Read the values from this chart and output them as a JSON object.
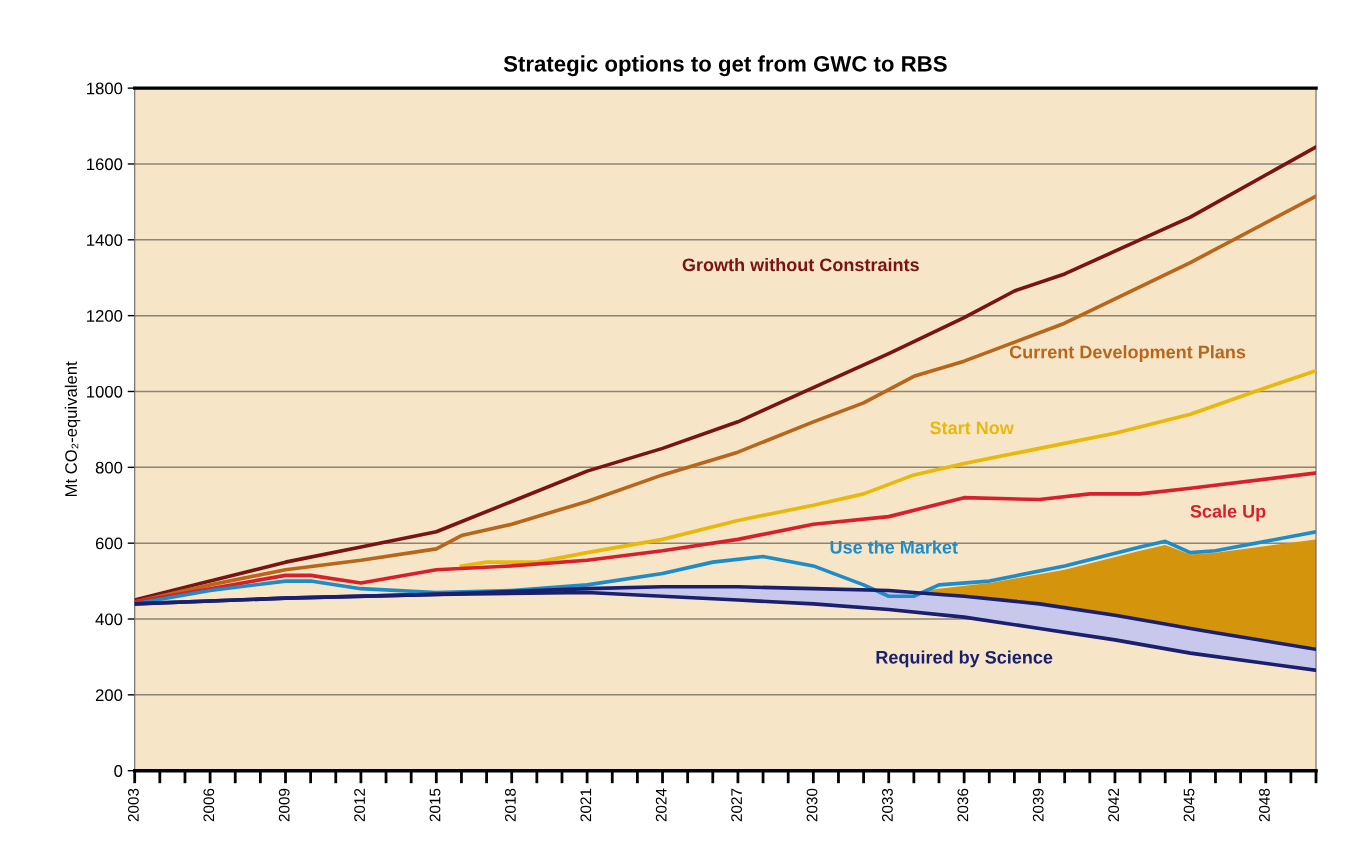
{
  "chart_data": {
    "type": "line",
    "title": "Strategic options to get from GWC to RBS",
    "ylabel": "Mt CO₂-equivalent",
    "xlim": [
      2003,
      2050
    ],
    "ylim": [
      0,
      1800
    ],
    "yticks": [
      0,
      200,
      400,
      600,
      800,
      1000,
      1200,
      1400,
      1600,
      1800
    ],
    "xticks": [
      2003,
      {
        "value": 2004,
        "label": null
      },
      {
        "value": 2005,
        "label": null
      },
      2006,
      {
        "value": 2007,
        "label": null
      },
      {
        "value": 2008,
        "label": null
      },
      2009,
      {
        "value": 2010,
        "label": null
      },
      {
        "value": 2011,
        "label": null
      },
      2012,
      {
        "value": 2013,
        "label": null
      },
      {
        "value": 2014,
        "label": null
      },
      2015,
      {
        "value": 2016,
        "label": null
      },
      {
        "value": 2017,
        "label": null
      },
      2018,
      {
        "value": 2019,
        "label": null
      },
      {
        "value": 2020,
        "label": null
      },
      2021,
      {
        "value": 2022,
        "label": null
      },
      {
        "value": 2023,
        "label": null
      },
      2024,
      {
        "value": 2025,
        "label": null
      },
      {
        "value": 2026,
        "label": null
      },
      2027,
      {
        "value": 2028,
        "label": null
      },
      {
        "value": 2029,
        "label": null
      },
      2030,
      {
        "value": 2031,
        "label": null
      },
      {
        "value": 2032,
        "label": null
      },
      2033,
      {
        "value": 2034,
        "label": null
      },
      {
        "value": 2035,
        "label": null
      },
      2036,
      {
        "value": 2037,
        "label": null
      },
      {
        "value": 2038,
        "label": null
      },
      2039,
      {
        "value": 2040,
        "label": null
      },
      {
        "value": 2041,
        "label": null
      },
      2042,
      {
        "value": 2043,
        "label": null
      },
      {
        "value": 2044,
        "label": null
      },
      2045,
      {
        "value": 2046,
        "label": null
      },
      {
        "value": 2047,
        "label": null
      },
      2048,
      {
        "value": 2049,
        "label": null
      },
      {
        "value": 2050,
        "label": null
      }
    ],
    "grid": "y",
    "legend": false,
    "series": [
      {
        "name": "Growth without Constraints",
        "color": "#7a1414",
        "x": [
          2003,
          2006,
          2009,
          2012,
          2015,
          2018,
          2021,
          2024,
          2027,
          2028,
          2030,
          2033,
          2036,
          2038,
          2040,
          2042,
          2045,
          2050
        ],
        "values": [
          450,
          500,
          550,
          590,
          630,
          710,
          790,
          850,
          920,
          950,
          1010,
          1100,
          1195,
          1265,
          1310,
          1370,
          1460,
          1645
        ]
      },
      {
        "name": "Current Development Plans",
        "color": "#b8661c",
        "x": [
          2003,
          2006,
          2009,
          2012,
          2015,
          2016,
          2018,
          2021,
          2024,
          2027,
          2030,
          2032,
          2034,
          2036,
          2040,
          2045,
          2050
        ],
        "values": [
          445,
          490,
          530,
          555,
          585,
          620,
          650,
          710,
          780,
          840,
          920,
          970,
          1040,
          1080,
          1180,
          1340,
          1515
        ]
      },
      {
        "name": "Start Now",
        "color": "#e8b90c",
        "x": [
          2016,
          2017,
          2019,
          2021,
          2024,
          2027,
          2030,
          2032,
          2034,
          2036,
          2039,
          2042,
          2045,
          2048,
          2050
        ],
        "values": [
          540,
          550,
          550,
          575,
          610,
          660,
          700,
          730,
          780,
          810,
          850,
          890,
          940,
          1010,
          1055
        ]
      },
      {
        "name": "Scale Up",
        "color": "#d8202c",
        "x": [
          2003,
          2006,
          2009,
          2010,
          2012,
          2015,
          2018,
          2021,
          2024,
          2027,
          2030,
          2033,
          2036,
          2039,
          2041,
          2043,
          2045,
          2050
        ],
        "values": [
          445,
          480,
          515,
          515,
          495,
          530,
          540,
          555,
          580,
          610,
          650,
          670,
          720,
          715,
          730,
          730,
          745,
          785
        ]
      },
      {
        "name": "Use the Market",
        "color": "#1e8cc8",
        "x": [
          2003,
          2006,
          2009,
          2010,
          2012,
          2015,
          2018,
          2021,
          2024,
          2026,
          2028,
          2030,
          2032,
          2033,
          2034,
          2035,
          2037,
          2040,
          2043,
          2044,
          2045,
          2046,
          2050
        ],
        "values": [
          440,
          475,
          500,
          500,
          480,
          470,
          475,
          490,
          520,
          550,
          565,
          540,
          490,
          460,
          460,
          490,
          500,
          540,
          590,
          605,
          575,
          580,
          630
        ],
        "lower": [
          null,
          null,
          null,
          null,
          null,
          null,
          null,
          null,
          null,
          null,
          null,
          null,
          null,
          null,
          470,
          465,
          452,
          430,
          398,
          387,
          375,
          364,
          320
        ],
        "upper": [
          null,
          null,
          null,
          null,
          null,
          null,
          null,
          null,
          null,
          null,
          null,
          null,
          null,
          null,
          470,
          480,
          495,
          530,
          580,
          595,
          570,
          575,
          610
        ]
      },
      {
        "name": "Required by Science",
        "color": "#1a1f6e",
        "x": [
          2003,
          2009,
          2015,
          2021,
          2024,
          2027,
          2030,
          2033,
          2036,
          2039,
          2042,
          2045,
          2050
        ],
        "values": [
          440,
          455,
          465,
          470,
          460,
          450,
          440,
          425,
          405,
          375,
          345,
          310,
          265
        ],
        "lower": [
          440,
          455,
          465,
          470,
          460,
          450,
          440,
          425,
          405,
          375,
          345,
          310,
          265
        ],
        "upper": [
          440,
          455,
          465,
          480,
          485,
          485,
          480,
          475,
          460,
          440,
          410,
          375,
          320
        ]
      },
      {
        "color": "#1a1f6e",
        "x": [
          2003,
          2009,
          2015,
          2021,
          2024,
          2027,
          2030,
          2033,
          2034,
          2036,
          2039,
          2042,
          2044,
          2045,
          2046,
          2048,
          2050
        ],
        "values": [
          440,
          455,
          465,
          480,
          485,
          485,
          480,
          475,
          470,
          460,
          440,
          410,
          387,
          375,
          364,
          342,
          320
        ]
      }
    ]
  }
}
